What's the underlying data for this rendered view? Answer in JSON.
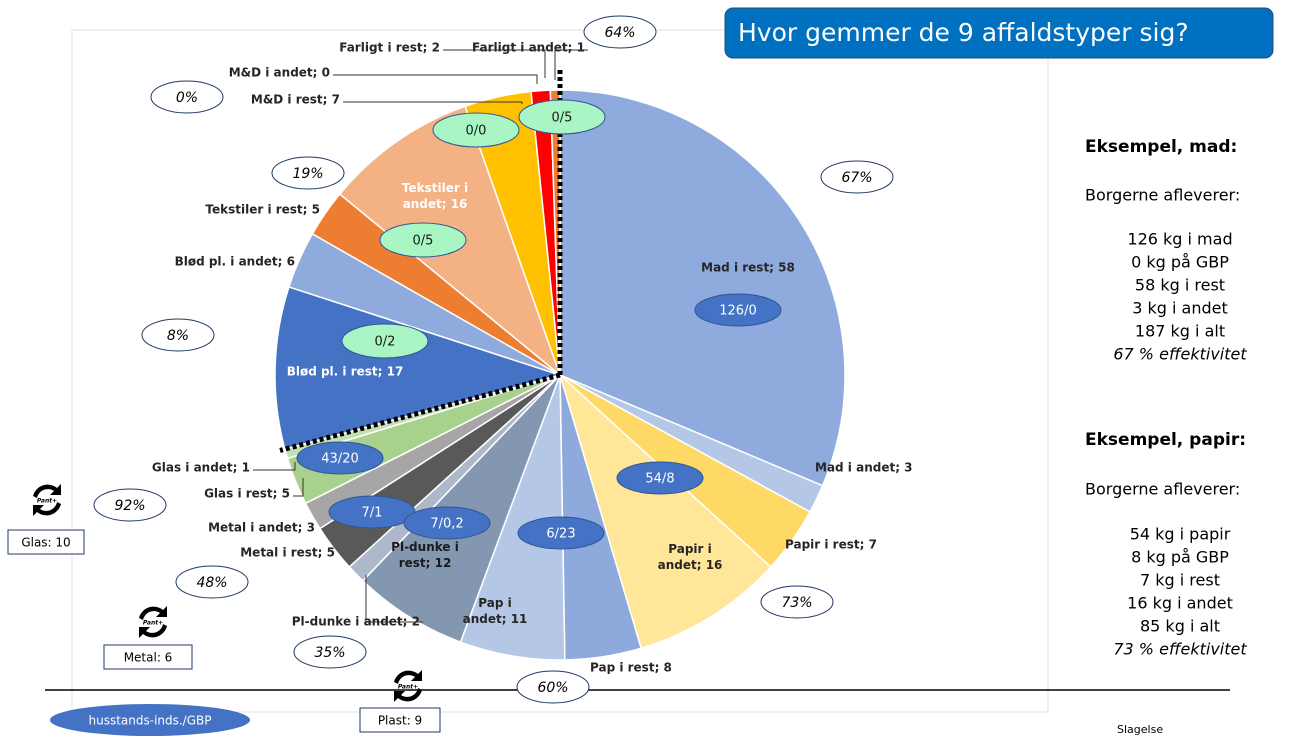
{
  "header": {
    "title": "Hvor gemmer de 9 affaldstyper sig?"
  },
  "chart_data": {
    "type": "pie",
    "values": [
      58,
      3,
      7,
      16,
      8,
      11,
      12,
      2,
      5,
      3,
      5,
      1,
      17,
      6,
      5,
      16,
      7,
      0,
      2,
      1
    ],
    "value_labels": [
      "Mad i rest; 58",
      "Mad i andet; 3",
      "Papir i rest; 7",
      "Papir i andet; 16",
      "Pap i rest; 8",
      "Pap i andet; 11",
      "Pl-dunke i rest; 12",
      "Pl-dunke i andet; 2",
      "Metal i rest; 5",
      "Metal i andet; 3",
      "Glas i rest; 5",
      "Glas i andet; 1",
      "Blød pl. i rest; 17",
      "Blød pl. i andet; 6",
      "Tekstiler i rest; 5",
      "Tekstiler i andet; 16",
      "M&D i rest; 7",
      "M&D i andet; 0",
      "Farligt i rest; 2",
      "Farligt i andet; 1"
    ],
    "colors": [
      "#8faadc",
      "#b4c7e7",
      "#ffd966",
      "#ffe699",
      "#8ea9db",
      "#b4c7e7",
      "#8497b0",
      "#adb9ca",
      "#595959",
      "#a6a6a6",
      "#a9d18e",
      "#c5e0b4",
      "#4472c4",
      "#8faadc",
      "#ed7d31",
      "#f4b183",
      "#ffc000",
      "#ffc000",
      "#ff0000",
      "#ed7d31"
    ],
    "percent_labels": [
      "64%",
      "0%",
      "19%",
      "67%",
      "8%",
      "92%",
      "48%",
      "73%",
      "35%",
      "60%"
    ],
    "blue_labels": [
      "126/0",
      "54/8",
      "43/20",
      "7/1",
      "7/0,2",
      "6/23"
    ],
    "green_labels": [
      "0/0",
      "0/5",
      "0/5",
      "0/2"
    ]
  },
  "examples": [
    {
      "heading": "Eksempel, mad:",
      "intro": "Borgerne afleverer:",
      "lines": [
        "126 kg i mad",
        "0 kg på GBP",
        "58 kg i rest",
        "3 kg i andet",
        "187 kg i alt"
      ],
      "efficiency": "67 % effektivitet"
    },
    {
      "heading": "Eksempel, papir:",
      "intro": "Borgerne afleverer:",
      "lines": [
        "54 kg i papir",
        "8 kg på GBP",
        "7 kg i rest",
        "16 kg i andet",
        "85 kg i alt"
      ],
      "efficiency": "73 % effektivitet"
    }
  ],
  "pant_icon": "Pant+",
  "pant_boxes": [
    "Glas: 10",
    "Metal: 6",
    "Plast: 9"
  ],
  "legend_button": "husstands-inds./GBP",
  "footer": "Slagelse"
}
